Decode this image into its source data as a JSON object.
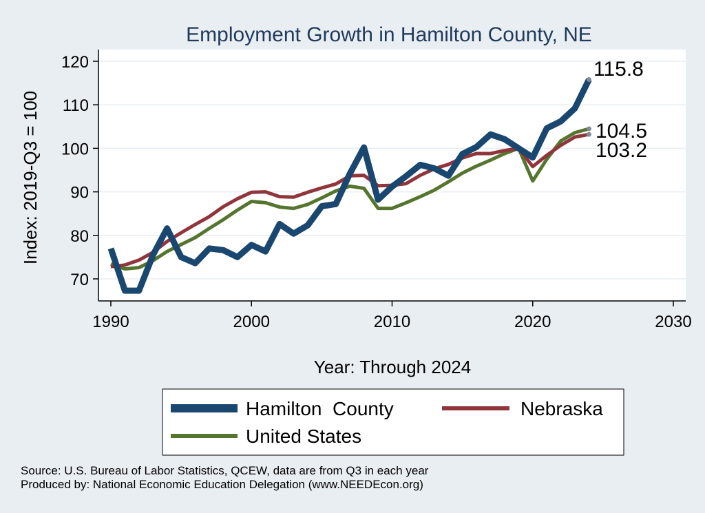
{
  "chart_data": {
    "type": "line",
    "title": "Employment Growth in Hamilton County, NE",
    "xlabel": "Year: Through 2024",
    "ylabel": "Index: 2019-Q3 = 100",
    "xlim": [
      1990,
      2030
    ],
    "ylim": [
      65,
      122
    ],
    "xticks": [
      1990,
      2000,
      2010,
      2020,
      2030
    ],
    "yticks": [
      70,
      80,
      90,
      100,
      110,
      120
    ],
    "grid": true,
    "x": [
      1990,
      1991,
      1992,
      1993,
      1994,
      1995,
      1996,
      1997,
      1998,
      1999,
      2000,
      2001,
      2002,
      2003,
      2004,
      2005,
      2006,
      2007,
      2008,
      2009,
      2010,
      2011,
      2012,
      2013,
      2014,
      2015,
      2016,
      2017,
      2018,
      2019,
      2020,
      2021,
      2022,
      2023,
      2024
    ],
    "series": [
      {
        "name": "Hamilton  County",
        "color": "#1a476f",
        "values": [
          77.0,
          67.3,
          67.3,
          75.5,
          81.6,
          75.0,
          73.6,
          77.0,
          76.6,
          75.0,
          77.8,
          76.3,
          82.6,
          80.4,
          82.3,
          86.7,
          87.2,
          94.2,
          100.2,
          88.2,
          91.2,
          93.6,
          96.2,
          95.4,
          93.7,
          98.7,
          100.3,
          103.2,
          102.1,
          100.0,
          97.9,
          104.6,
          106.2,
          109.2,
          115.8
        ]
      },
      {
        "name": "Nebraska",
        "color": "#90353b",
        "values": [
          72.8,
          73.2,
          74.3,
          76.1,
          78.6,
          80.6,
          82.5,
          84.3,
          86.6,
          88.4,
          89.9,
          90.0,
          88.9,
          88.8,
          89.9,
          90.9,
          91.8,
          93.7,
          93.8,
          91.4,
          91.5,
          91.9,
          93.8,
          95.3,
          96.3,
          97.8,
          98.8,
          98.8,
          99.5,
          100.0,
          95.8,
          98.4,
          100.7,
          102.6,
          103.2
        ]
      },
      {
        "name": "United States",
        "color": "#55752f",
        "values": [
          73.4,
          72.3,
          72.6,
          74.2,
          76.3,
          77.9,
          79.5,
          81.6,
          83.6,
          85.8,
          87.8,
          87.5,
          86.5,
          86.2,
          87.1,
          88.6,
          90.2,
          91.3,
          90.8,
          86.2,
          86.2,
          87.5,
          88.9,
          90.4,
          92.3,
          94.3,
          95.9,
          97.3,
          98.8,
          100.0,
          92.5,
          97.5,
          101.7,
          103.6,
          104.5
        ]
      }
    ],
    "end_labels": [
      "115.8",
      "104.5",
      "103.2"
    ]
  },
  "legend": {
    "items": [
      "Hamilton  County",
      "Nebraska",
      "United States"
    ]
  },
  "source": {
    "line1": "Source: U.S. Bureau of Labor Statistics, QCEW, data are from Q3 in each year",
    "line2": "Produced by: National Economic Education Delegation (www.NEEDEcon.org)"
  }
}
